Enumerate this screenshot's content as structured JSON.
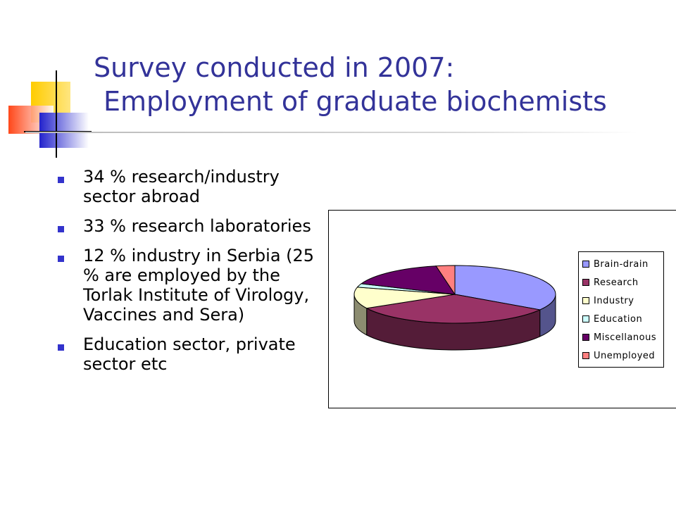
{
  "slide": {
    "title_line1": "Survey conducted in 2007:",
    "title_line2": "Employment of graduate biochemists",
    "bullets": [
      "34 % research/industry sector abroad",
      "33 % research laboratories",
      "12 % industry in Serbia (25 % are employed by the Torlak Institute of Virology, Vaccines and Sera)",
      "Education sector, private sector etc"
    ],
    "accent_color": "#333399",
    "bullet_color": "#3333cc"
  },
  "chart_data": {
    "type": "pie",
    "title": "",
    "categories": [
      "Brain-drain",
      "Research",
      "Industry",
      "Education",
      "Miscellanous",
      "Unemployed"
    ],
    "values": [
      34,
      33,
      12,
      2,
      16,
      3
    ],
    "colors": [
      "#9999ff",
      "#993366",
      "#ffffcc",
      "#ccffff",
      "#660066",
      "#ff8080"
    ],
    "style": "3d",
    "legend_position": "right"
  }
}
